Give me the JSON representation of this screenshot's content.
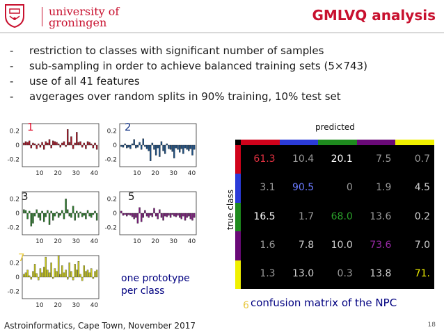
{
  "header": {
    "university_line1": "university of",
    "university_line2": "groningen",
    "title": "GMLVQ analysis"
  },
  "bullets": [
    {
      "dash": "-",
      "text": "restriction to classes with significant number of samples"
    },
    {
      "dash": "-",
      "text": "sub-sampling in order to achieve balanced training sets (5×743)"
    },
    {
      "dash": "-",
      "text": "use of all 41 features"
    },
    {
      "dash": "-",
      "text": "avgerages over random splits in 90% training, 10% test set"
    }
  ],
  "prototypes": {
    "caption_line1": "one prototype",
    "caption_line2": "per class",
    "y_ticks": [
      "0.2",
      "0",
      "-0.2"
    ],
    "x_ticks": [
      "10",
      "20",
      "30",
      "40"
    ],
    "plots": [
      {
        "label": "1",
        "label_color": "#e0102e",
        "bar_color": "#a01828",
        "values": [
          0.03,
          0.05,
          0.04,
          0.06,
          -0.04,
          0.03,
          0.02,
          -0.05,
          0.02,
          -0.03,
          0.04,
          -0.06,
          0.05,
          0.03,
          0.08,
          -0.04,
          0.06,
          0.05,
          0.04,
          0.02,
          -0.03,
          0.03,
          0.05,
          -0.02,
          0.22,
          0.04,
          0.12,
          -0.05,
          0.03,
          0.18,
          0.04,
          0.05,
          -0.03,
          0.03,
          -0.05,
          0.05,
          0.04,
          0.02,
          -0.04,
          0.03,
          -0.06
        ]
      },
      {
        "label": "2",
        "label_color": "#1a3a8a",
        "bar_color": "#1e4f82",
        "values": [
          -0.02,
          -0.03,
          0.02,
          -0.04,
          -0.03,
          -0.05,
          0.02,
          0.08,
          -0.04,
          -0.03,
          0.04,
          -0.06,
          0.09,
          -0.02,
          -0.05,
          -0.08,
          -0.22,
          0.03,
          -0.06,
          -0.14,
          -0.04,
          -0.16,
          0.05,
          -0.08,
          -0.12,
          0.02,
          -0.05,
          -0.06,
          -0.09,
          -0.18,
          -0.04,
          -0.06,
          -0.1,
          -0.05,
          -0.12,
          -0.04,
          -0.06,
          -0.08,
          -0.05,
          -0.14,
          -0.06
        ]
      },
      {
        "label": "3",
        "label_color": "#1a1a1a",
        "bar_color": "#2e7a2e",
        "values": [
          0.05,
          0.04,
          -0.08,
          0.03,
          -0.18,
          -0.14,
          -0.04,
          0.05,
          -0.06,
          -0.1,
          0.03,
          -0.12,
          -0.05,
          0.04,
          -0.16,
          0.03,
          -0.1,
          -0.04,
          0.02,
          -0.06,
          -0.03,
          0.04,
          -0.08,
          0.2,
          0.05,
          -0.04,
          -0.06,
          0.1,
          -0.1,
          0.03,
          -0.06,
          0.02,
          -0.05,
          -0.03,
          -0.08,
          0.04,
          -0.04,
          -0.06,
          -0.02,
          0.03,
          -0.1
        ]
      },
      {
        "label": "5",
        "label_color": "#1a1a1a",
        "bar_color": "#7a1e7a",
        "values": [
          0.03,
          -0.03,
          -0.02,
          -0.04,
          -0.02,
          -0.03,
          -0.05,
          -0.08,
          -0.06,
          -0.14,
          0.08,
          -0.12,
          -0.06,
          0.04,
          -0.04,
          -0.06,
          -0.03,
          -0.05,
          0.07,
          -0.04,
          -0.08,
          0.05,
          -0.06,
          -0.1,
          -0.04,
          -0.05,
          -0.03,
          -0.06,
          -0.02,
          -0.04,
          -0.05,
          -0.03,
          -0.06,
          -0.08,
          -0.04,
          -0.1,
          -0.06,
          -0.04,
          -0.08,
          -0.1,
          -0.06
        ]
      },
      {
        "label": "7",
        "label_color": "#e8c830",
        "bar_color": "#c8c820",
        "values": [
          0.04,
          0.06,
          0.1,
          0.02,
          -0.03,
          0.08,
          0.18,
          0.05,
          -0.04,
          0.12,
          0.06,
          0.14,
          0.28,
          0.1,
          0.06,
          0.2,
          -0.02,
          0.12,
          0.08,
          0.3,
          0.04,
          0.16,
          0.06,
          0.1,
          -0.03,
          0.2,
          0.08,
          -0.04,
          0.18,
          0.1,
          0.22,
          0.04,
          -0.05,
          0.16,
          0.08,
          0.1,
          0.06,
          0.12,
          -0.02,
          0.08,
          0.1
        ]
      }
    ]
  },
  "confusion": {
    "predicted_label": "predicted",
    "true_label": "true class",
    "caption": "confusion matrix of the NPC",
    "corner": "6",
    "class_colors": [
      "#d0021b",
      "#2b3bd8",
      "#1e8a1e",
      "#6a0a78",
      "#f0f000"
    ],
    "rows": [
      [
        "61.3",
        "10.4",
        "20.1",
        "7.5",
        "0.7"
      ],
      [
        "3.1",
        "90.5",
        "0",
        "1.9",
        "4.5"
      ],
      [
        "16.5",
        "1.7",
        "68.0",
        "13.6",
        "0.2"
      ],
      [
        "1.6",
        "7.8",
        "10.0",
        "73.6",
        "7.0"
      ],
      [
        "1.3",
        "13.0",
        "0.3",
        "13.8",
        "71."
      ]
    ],
    "cell_colors": [
      [
        "#e03040",
        "#9a9a9a",
        "#ffffff",
        "#9a9a9a",
        "#9a9a9a"
      ],
      [
        "#9a9a9a",
        "#6a7aff",
        "#9a9a9a",
        "#9a9a9a",
        "#cfcfcf"
      ],
      [
        "#ffffff",
        "#9a9a9a",
        "#2aa02a",
        "#9a9a9a",
        "#cfcfcf"
      ],
      [
        "#9a9a9a",
        "#cfcfcf",
        "#cfcfcf",
        "#9a2aa8",
        "#cfcfcf"
      ],
      [
        "#9a9a9a",
        "#cfcfcf",
        "#9a9a9a",
        "#cfcfcf",
        "#f0f000"
      ]
    ]
  },
  "footer": {
    "text": "Astroinformatics, Cape Town, November 2017",
    "page": "18"
  }
}
